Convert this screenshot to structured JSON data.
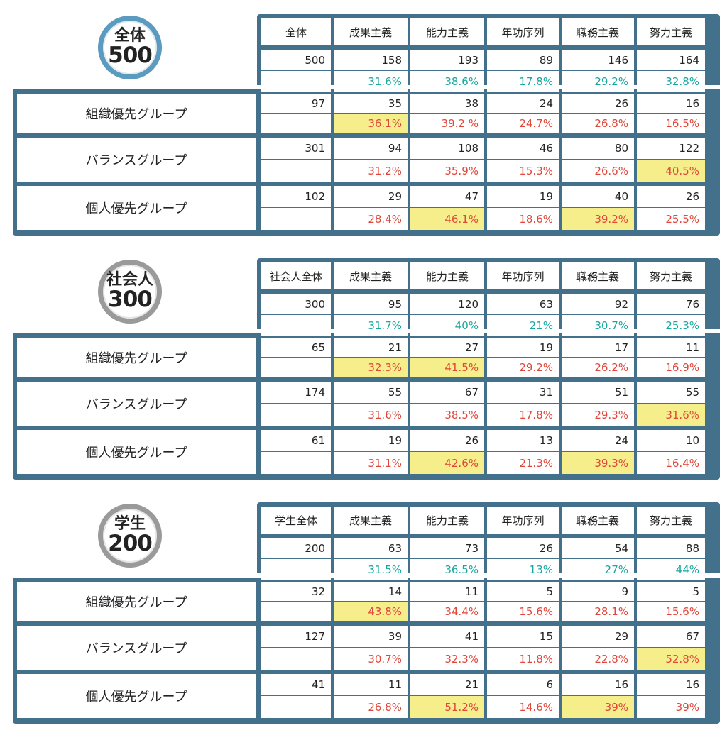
{
  "columns": [
    "成果主義",
    "能力主義",
    "年功序列",
    "職務主義",
    "努力主義"
  ],
  "sections": [
    {
      "badge_label": "全体",
      "badge_number": "500",
      "total_header": "全体",
      "total": {
        "n": "500",
        "values": [
          "158",
          "193",
          "89",
          "146",
          "164"
        ],
        "pcts": [
          "31.6%",
          "38.6%",
          "17.8%",
          "29.2%",
          "32.8%"
        ]
      },
      "groups": [
        {
          "name": "組織優先グループ",
          "n": "97",
          "values": [
            "35",
            "38",
            "24",
            "26",
            "16"
          ],
          "pcts": [
            "36.1%",
            "39.2 %",
            "24.7%",
            "26.8%",
            "16.5%"
          ],
          "highlight": [
            0
          ]
        },
        {
          "name": "バランスグループ",
          "n": "301",
          "values": [
            "94",
            "108",
            "46",
            "80",
            "122"
          ],
          "pcts": [
            "31.2%",
            "35.9%",
            "15.3%",
            "26.6%",
            "40.5%"
          ],
          "highlight": [
            4
          ]
        },
        {
          "name": "個人優先グループ",
          "n": "102",
          "values": [
            "29",
            "47",
            "19",
            "40",
            "26"
          ],
          "pcts": [
            "28.4%",
            "46.1%",
            "18.6%",
            "39.2%",
            "25.5%"
          ],
          "highlight": [
            1,
            3
          ]
        }
      ]
    },
    {
      "badge_label": "社会人",
      "badge_number": "300",
      "total_header": "社会人全体",
      "total": {
        "n": "300",
        "values": [
          "95",
          "120",
          "63",
          "92",
          "76"
        ],
        "pcts": [
          "31.7%",
          "40%",
          "21%",
          "30.7%",
          "25.3%"
        ]
      },
      "groups": [
        {
          "name": "組織優先グループ",
          "n": "65",
          "values": [
            "21",
            "27",
            "19",
            "17",
            "11"
          ],
          "pcts": [
            "32.3%",
            "41.5%",
            "29.2%",
            "26.2%",
            "16.9%"
          ],
          "highlight": [
            0,
            1
          ]
        },
        {
          "name": "バランスグループ",
          "n": "174",
          "values": [
            "55",
            "67",
            "31",
            "51",
            "55"
          ],
          "pcts": [
            "31.6%",
            "38.5%",
            "17.8%",
            "29.3%",
            "31.6%"
          ],
          "highlight": [
            4
          ]
        },
        {
          "name": "個人優先グループ",
          "n": "61",
          "values": [
            "19",
            "26",
            "13",
            "24",
            "10"
          ],
          "pcts": [
            "31.1%",
            "42.6%",
            "21.3%",
            "39.3%",
            "16.4%"
          ],
          "highlight": [
            1,
            3
          ]
        }
      ]
    },
    {
      "badge_label": "学生",
      "badge_number": "200",
      "total_header": "学生全体",
      "total": {
        "n": "200",
        "values": [
          "63",
          "73",
          "26",
          "54",
          "88"
        ],
        "pcts": [
          "31.5%",
          "36.5%",
          "13%",
          "27%",
          "44%"
        ]
      },
      "groups": [
        {
          "name": "組織優先グループ",
          "n": "32",
          "values": [
            "14",
            "11",
            "5",
            "9",
            "5"
          ],
          "pcts": [
            "43.8%",
            "34.4%",
            "15.6%",
            "28.1%",
            "15.6%"
          ],
          "highlight": [
            0
          ]
        },
        {
          "name": "バランスグループ",
          "n": "127",
          "values": [
            "39",
            "41",
            "15",
            "29",
            "67"
          ],
          "pcts": [
            "30.7%",
            "32.3%",
            "11.8%",
            "22.8%",
            "52.8%"
          ],
          "highlight": [
            4
          ]
        },
        {
          "name": "個人優先グループ",
          "n": "41",
          "values": [
            "11",
            "21",
            "6",
            "16",
            "16"
          ],
          "pcts": [
            "26.8%",
            "51.2%",
            "14.6%",
            "39%",
            "39%"
          ],
          "highlight": [
            1,
            3
          ]
        }
      ]
    }
  ],
  "chart_data": {
    "type": "table",
    "columns": [
      "成果主義",
      "能力主義",
      "年功序列",
      "職務主義",
      "努力主義"
    ],
    "tables": [
      {
        "label": "全体",
        "total_n": 500,
        "rows": [
          {
            "name": "全体",
            "n": 500,
            "counts": [
              158,
              193,
              89,
              146,
              164
            ],
            "pct": [
              31.6,
              38.6,
              17.8,
              29.2,
              32.8
            ]
          },
          {
            "name": "組織優先グループ",
            "n": 97,
            "counts": [
              35,
              38,
              24,
              26,
              16
            ],
            "pct": [
              36.1,
              39.2,
              24.7,
              26.8,
              16.5
            ]
          },
          {
            "name": "バランスグループ",
            "n": 301,
            "counts": [
              94,
              108,
              46,
              80,
              122
            ],
            "pct": [
              31.2,
              35.9,
              15.3,
              26.6,
              40.5
            ]
          },
          {
            "name": "個人優先グループ",
            "n": 102,
            "counts": [
              29,
              47,
              19,
              40,
              26
            ],
            "pct": [
              28.4,
              46.1,
              18.6,
              39.2,
              25.5
            ]
          }
        ]
      },
      {
        "label": "社会人",
        "total_n": 300,
        "rows": [
          {
            "name": "社会人全体",
            "n": 300,
            "counts": [
              95,
              120,
              63,
              92,
              76
            ],
            "pct": [
              31.7,
              40,
              21,
              30.7,
              25.3
            ]
          },
          {
            "name": "組織優先グループ",
            "n": 65,
            "counts": [
              21,
              27,
              19,
              17,
              11
            ],
            "pct": [
              32.3,
              41.5,
              29.2,
              26.2,
              16.9
            ]
          },
          {
            "name": "バランスグループ",
            "n": 174,
            "counts": [
              55,
              67,
              31,
              51,
              55
            ],
            "pct": [
              31.6,
              38.5,
              17.8,
              29.3,
              31.6
            ]
          },
          {
            "name": "個人優先グループ",
            "n": 61,
            "counts": [
              19,
              26,
              13,
              24,
              10
            ],
            "pct": [
              31.1,
              42.6,
              21.3,
              39.3,
              16.4
            ]
          }
        ]
      },
      {
        "label": "学生",
        "total_n": 200,
        "rows": [
          {
            "name": "学生全体",
            "n": 200,
            "counts": [
              63,
              73,
              26,
              54,
              88
            ],
            "pct": [
              31.5,
              36.5,
              13,
              27,
              44
            ]
          },
          {
            "name": "組織優先グループ",
            "n": 32,
            "counts": [
              14,
              11,
              5,
              9,
              5
            ],
            "pct": [
              43.8,
              34.4,
              15.6,
              28.1,
              15.6
            ]
          },
          {
            "name": "バランスグループ",
            "n": 127,
            "counts": [
              39,
              41,
              15,
              29,
              67
            ],
            "pct": [
              30.7,
              32.3,
              11.8,
              22.8,
              52.8
            ]
          },
          {
            "name": "個人優先グループ",
            "n": 41,
            "counts": [
              11,
              21,
              6,
              16,
              16
            ],
            "pct": [
              26.8,
              51.2,
              14.6,
              39,
              39
            ]
          }
        ]
      }
    ]
  },
  "colors": {
    "frame": "#43708a",
    "badge_blue": "#5b9bbf",
    "badge_gray": "#9a9a9a",
    "highlight": "#f5ee8a",
    "pct_total": "#1aa6a0",
    "pct_group": "#e0463a"
  }
}
